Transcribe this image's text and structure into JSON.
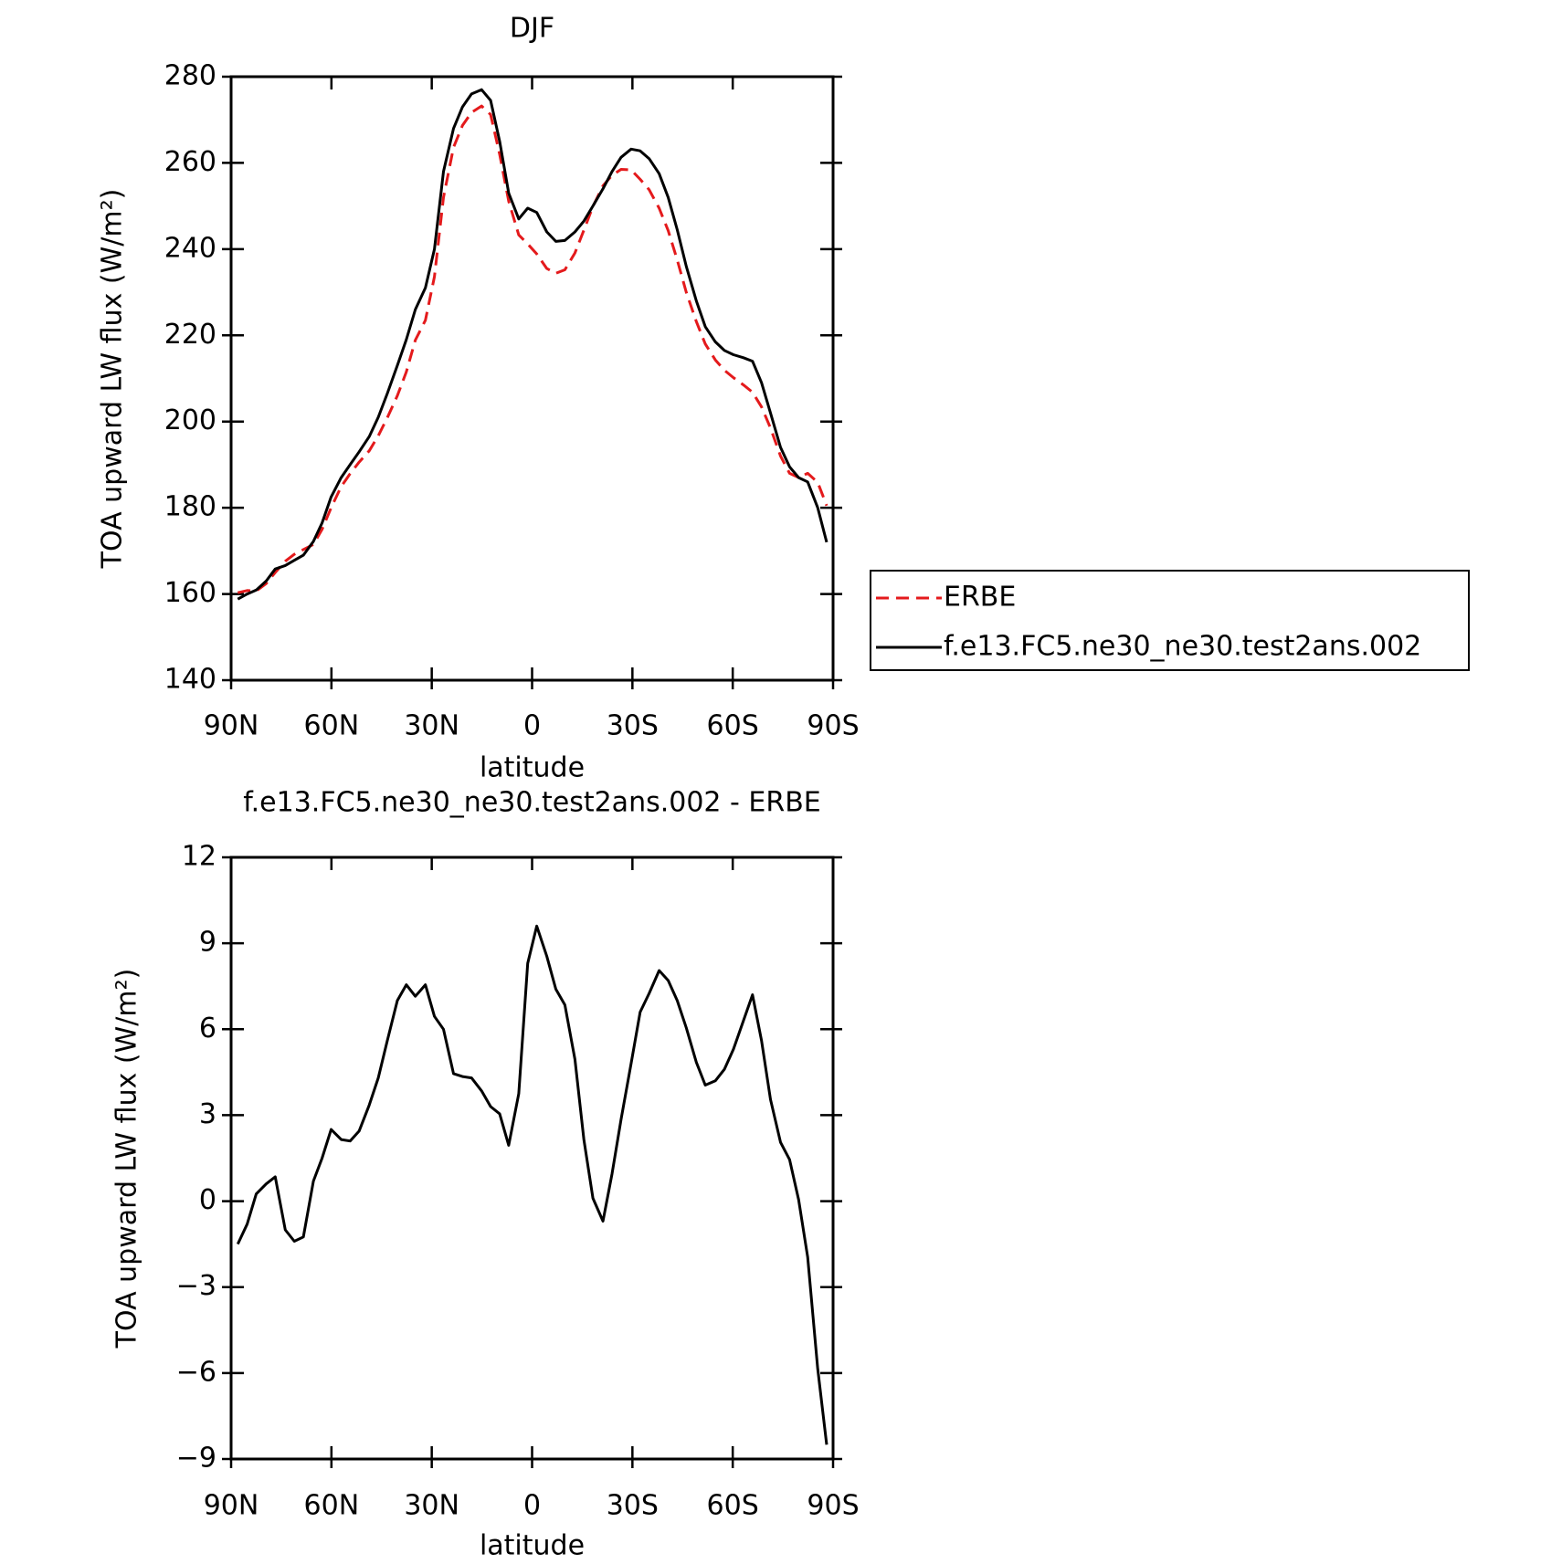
{
  "chart_data": [
    {
      "type": "line",
      "title": "DJF",
      "xlabel": "latitude",
      "ylabel": "TOA upward LW flux (W/m²)",
      "x": [
        88,
        85.2,
        82.5,
        79.5,
        76.8,
        73.8,
        71.1,
        68.4,
        65.4,
        62.8,
        60.1,
        57.1,
        54.4,
        51.7,
        48.7,
        46,
        43.3,
        40.3,
        37.6,
        34.9,
        31.9,
        29.2,
        26.5,
        23.5,
        20.8,
        18.1,
        15.1,
        12.4,
        9.7,
        7,
        4,
        1.3,
        -1.4,
        -4.4,
        -7.1,
        -9.8,
        -12.8,
        -15.5,
        -18.2,
        -21.2,
        -23.9,
        -26.6,
        -29.6,
        -32.3,
        -35,
        -38,
        -40.7,
        -43.4,
        -46.1,
        -49.1,
        -51.8,
        -54.8,
        -57.5,
        -60.2,
        -63.2,
        -65.9,
        -68.6,
        -71.3,
        -74.3,
        -77,
        -79.7,
        -82.4,
        -85.4,
        -88.1
      ],
      "series": [
        {
          "name": "ERBE",
          "color": "#e41a1c",
          "line_style": "dashed",
          "values": [
            160.3,
            160.8,
            160.7,
            162.4,
            165,
            167.6,
            169.2,
            170.3,
            171.5,
            175,
            180,
            184.9,
            187.9,
            190.6,
            193.2,
            196.7,
            200.9,
            206,
            211.5,
            218.9,
            223.5,
            233.6,
            252,
            263.6,
            268.7,
            271.7,
            273.2,
            271.2,
            262,
            251.1,
            243.3,
            241.2,
            238.9,
            235.5,
            234.4,
            235.2,
            239.1,
            244.4,
            249.9,
            254.7,
            257.1,
            258.5,
            258.4,
            256.2,
            253.8,
            249.5,
            244.3,
            237.5,
            230,
            223.2,
            218,
            214.3,
            211.9,
            210.2,
            208.5,
            206.8,
            203.4,
            198.5,
            192,
            188,
            187,
            188,
            185.9,
            180.5
          ]
        },
        {
          "name": "f.e13.FC5.ne30_ne30.test2ans.002",
          "color": "#000000",
          "line_style": "solid",
          "values": [
            158.8,
            160,
            160.9,
            163,
            165.8,
            166.6,
            167.8,
            169,
            172.2,
            176.5,
            182.5,
            187,
            190,
            193,
            196.5,
            201,
            206.5,
            213,
            219,
            226,
            231,
            240,
            258,
            268,
            273,
            276,
            277,
            274.5,
            265,
            253,
            247,
            249.5,
            248.5,
            244,
            241.8,
            242,
            244,
            246.5,
            250,
            254,
            258,
            261.3,
            263.2,
            262.8,
            261,
            257.5,
            252,
            244.5,
            236,
            228,
            222,
            218.5,
            216.5,
            215.5,
            214.8,
            214,
            209,
            202,
            194,
            189.5,
            187,
            186,
            180,
            172
          ]
        }
      ],
      "xlim": [
        90,
        -90
      ],
      "xticks": [
        {
          "value": 90,
          "label": "90N"
        },
        {
          "value": 60,
          "label": "60N"
        },
        {
          "value": 30,
          "label": "30N"
        },
        0,
        {
          "value": -30,
          "label": "30S"
        },
        {
          "value": -60,
          "label": "60S"
        },
        {
          "value": -90,
          "label": "90S"
        }
      ],
      "ylim": [
        140,
        280
      ],
      "yticks": [
        140,
        160,
        180,
        200,
        220,
        240,
        260,
        280
      ],
      "legend": "right"
    },
    {
      "type": "line",
      "title": "f.e13.FC5.ne30_ne30.test2ans.002 - ERBE",
      "xlabel": "latitude",
      "ylabel": "TOA upward LW flux (W/m²)",
      "x": [
        88,
        85.2,
        82.5,
        79.5,
        76.8,
        73.8,
        71.1,
        68.4,
        65.4,
        62.8,
        60.1,
        57.1,
        54.4,
        51.7,
        48.7,
        46,
        43.3,
        40.3,
        37.6,
        34.9,
        31.9,
        29.2,
        26.5,
        23.5,
        20.8,
        18.1,
        15.1,
        12.4,
        9.7,
        7,
        4,
        1.3,
        -1.4,
        -4.4,
        -7.1,
        -9.8,
        -12.8,
        -15.5,
        -18.2,
        -21.2,
        -23.9,
        -26.6,
        -29.6,
        -32.3,
        -35,
        -38,
        -40.7,
        -43.4,
        -46.1,
        -49.1,
        -51.8,
        -54.8,
        -57.5,
        -60.2,
        -63.2,
        -65.9,
        -68.6,
        -71.3,
        -74.3,
        -77,
        -79.7,
        -82.4,
        -85.4,
        -88.1
      ],
      "color": "#000000",
      "values": [
        -1.5,
        -0.8,
        0.25,
        0.6,
        0.85,
        -1,
        -1.4,
        -1.25,
        0.7,
        1.5,
        2.5,
        2.15,
        2.1,
        2.45,
        3.35,
        4.3,
        5.6,
        7,
        7.55,
        7.15,
        7.55,
        6.45,
        6,
        4.45,
        4.35,
        4.3,
        3.85,
        3.3,
        3.05,
        1.95,
        3.75,
        8.3,
        9.6,
        8.55,
        7.4,
        6.85,
        4.95,
        2.15,
        0.1,
        -0.7,
        0.95,
        2.85,
        4.8,
        6.6,
        7.25,
        8.05,
        7.7,
        7,
        6.05,
        4.85,
        4.05,
        4.2,
        4.6,
        5.3,
        6.3,
        7.2,
        5.6,
        3.55,
        2.05,
        1.45,
        0.05,
        -1.95,
        -5.85,
        -8.5
      ],
      "xlim": [
        90,
        -90
      ],
      "xticks": [
        {
          "value": 90,
          "label": "90N"
        },
        {
          "value": 60,
          "label": "60N"
        },
        {
          "value": 30,
          "label": "30N"
        },
        0,
        {
          "value": -30,
          "label": "30S"
        },
        {
          "value": -60,
          "label": "60S"
        },
        {
          "value": -90,
          "label": "90S"
        }
      ],
      "ylim": [
        -9,
        12
      ],
      "yticks": [
        {
          "value": -9,
          "label": "−9"
        },
        {
          "value": -6,
          "label": "−6"
        },
        {
          "value": -3,
          "label": "−3"
        },
        0,
        3,
        6,
        9,
        12
      ]
    }
  ]
}
